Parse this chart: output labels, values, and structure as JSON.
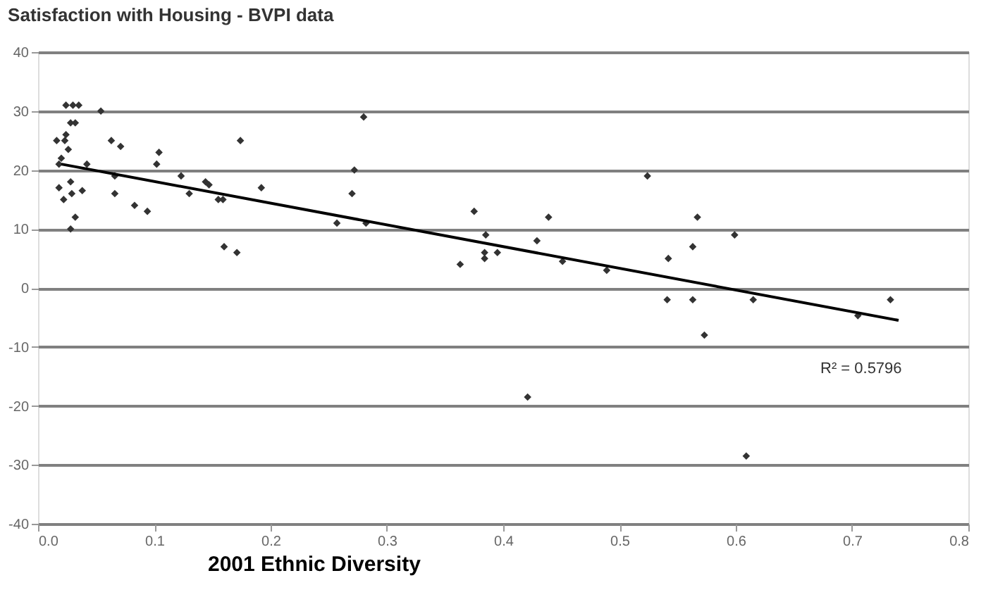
{
  "chart_data": {
    "type": "scatter",
    "title": "Satisfaction with Housing - BVPI data",
    "xlabel": "2001 Ethnic Diversity",
    "xlim": [
      0,
      0.8
    ],
    "xticks": [
      {
        "value": 0,
        "label": "0.0"
      },
      0.1,
      0.2,
      0.3,
      0.4,
      0.5,
      0.6,
      0.7,
      0.8
    ],
    "ylim": [
      -40,
      40
    ],
    "yticks": [
      -40,
      -30,
      -20,
      -10,
      0,
      10,
      20,
      30,
      40
    ],
    "grid": "y",
    "legend": false,
    "series": [
      {
        "marker": "diamond",
        "color": "#333333",
        "x": [
          0.024,
          0.03,
          0.035,
          0.028,
          0.032,
          0.016,
          0.023,
          0.024,
          0.018,
          0.02,
          0.026,
          0.018,
          0.022,
          0.028,
          0.029,
          0.032,
          0.028,
          0.038,
          0.042,
          0.054,
          0.063,
          0.071,
          0.066,
          0.066,
          0.083,
          0.094,
          0.102,
          0.104,
          0.123,
          0.13,
          0.144,
          0.147,
          0.155,
          0.159,
          0.16,
          0.171,
          0.174,
          0.192,
          0.257,
          0.27,
          0.272,
          0.28,
          0.282,
          0.363,
          0.375,
          0.385,
          0.384,
          0.384,
          0.395,
          0.429,
          0.439,
          0.451,
          0.489,
          0.524,
          0.542,
          0.541,
          0.563,
          0.563,
          0.567,
          0.573,
          0.599,
          0.615,
          0.609,
          0.421,
          0.705,
          0.733
        ],
        "values": [
          31,
          31,
          31,
          28,
          28,
          25,
          25,
          26,
          21,
          22,
          23.5,
          17,
          15,
          18,
          16,
          12,
          10,
          16.5,
          21,
          30,
          25,
          24,
          19,
          16,
          14,
          13,
          21,
          23,
          19,
          16,
          18,
          17.5,
          15,
          15,
          7,
          6,
          25,
          17,
          11,
          16,
          20,
          29,
          11,
          4,
          13,
          9,
          6,
          5,
          6,
          8,
          12,
          4.5,
          3,
          19,
          5,
          -2,
          -2,
          7,
          12,
          -8,
          9,
          -2,
          -28.5,
          -18.5,
          -4.7,
          -2
        ]
      },
      {
        "type": "line",
        "color": "#000000",
        "x": [
          0.02,
          0.74
        ],
        "values": [
          21,
          -5.5
        ]
      }
    ],
    "annotations": [
      "R² = 0.5796"
    ]
  }
}
